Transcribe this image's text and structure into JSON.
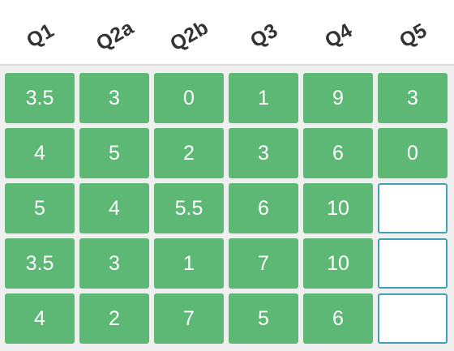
{
  "columns": [
    {
      "label": "Q1"
    },
    {
      "label": "Q2a"
    },
    {
      "label": "Q2b"
    },
    {
      "label": "Q3"
    },
    {
      "label": "Q4"
    },
    {
      "label": "Q5"
    }
  ],
  "rows": [
    [
      "3.5",
      "3",
      "0",
      "1",
      "9",
      "3"
    ],
    [
      "4",
      "5",
      "2",
      "3",
      "6",
      "0"
    ],
    [
      "5",
      "4",
      "5.5",
      "6",
      "10",
      ""
    ],
    [
      "3.5",
      "3",
      "1",
      "7",
      "10",
      ""
    ],
    [
      "4",
      "2",
      "7",
      "5",
      "6",
      ""
    ]
  ],
  "colors": {
    "filled_cell": "#5cb874",
    "empty_cell_border": "#41a0b4",
    "header_text": "#333333",
    "grid_background": "#efefef"
  }
}
